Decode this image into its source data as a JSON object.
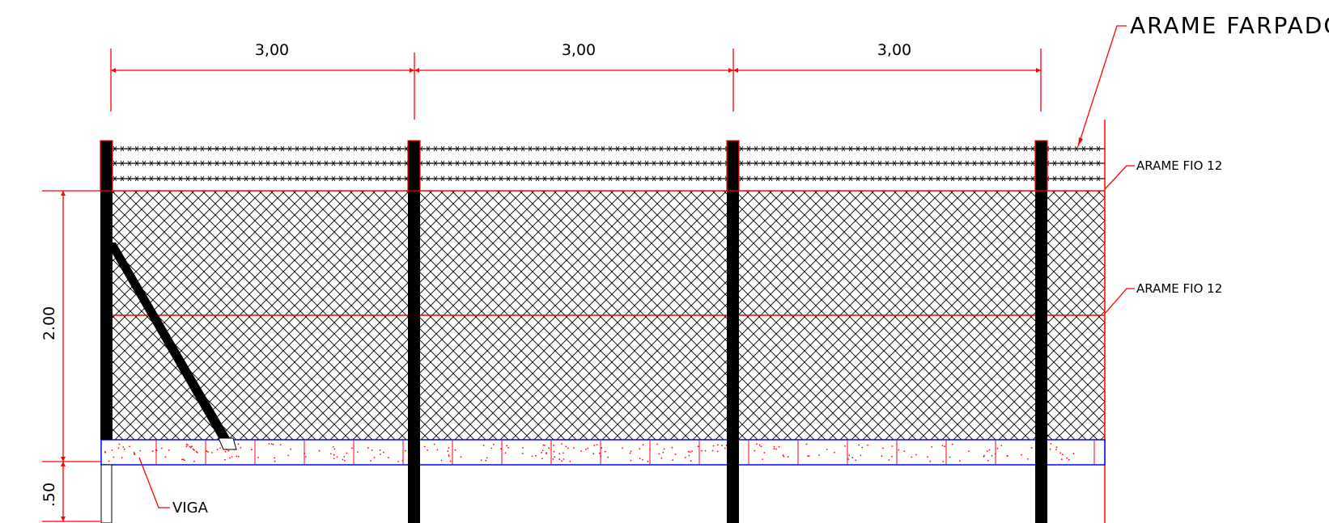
{
  "dimensions": {
    "spans": [
      "3,00",
      "3,00",
      "3,00"
    ],
    "height_fence": "2.00",
    "height_beam": ".50"
  },
  "labels": {
    "barbed_wire": "ARAME FARPADO",
    "wire_top": "ARAME FIO 12",
    "wire_mid": "ARAME FIO 12",
    "beam": "VIGA"
  },
  "colors": {
    "dimension": "#ff0000",
    "post": "#000000",
    "mesh": "#000000",
    "beam_outline": "#0000ff",
    "beam_divider": "#ff0000",
    "leader": "#ff0000"
  }
}
